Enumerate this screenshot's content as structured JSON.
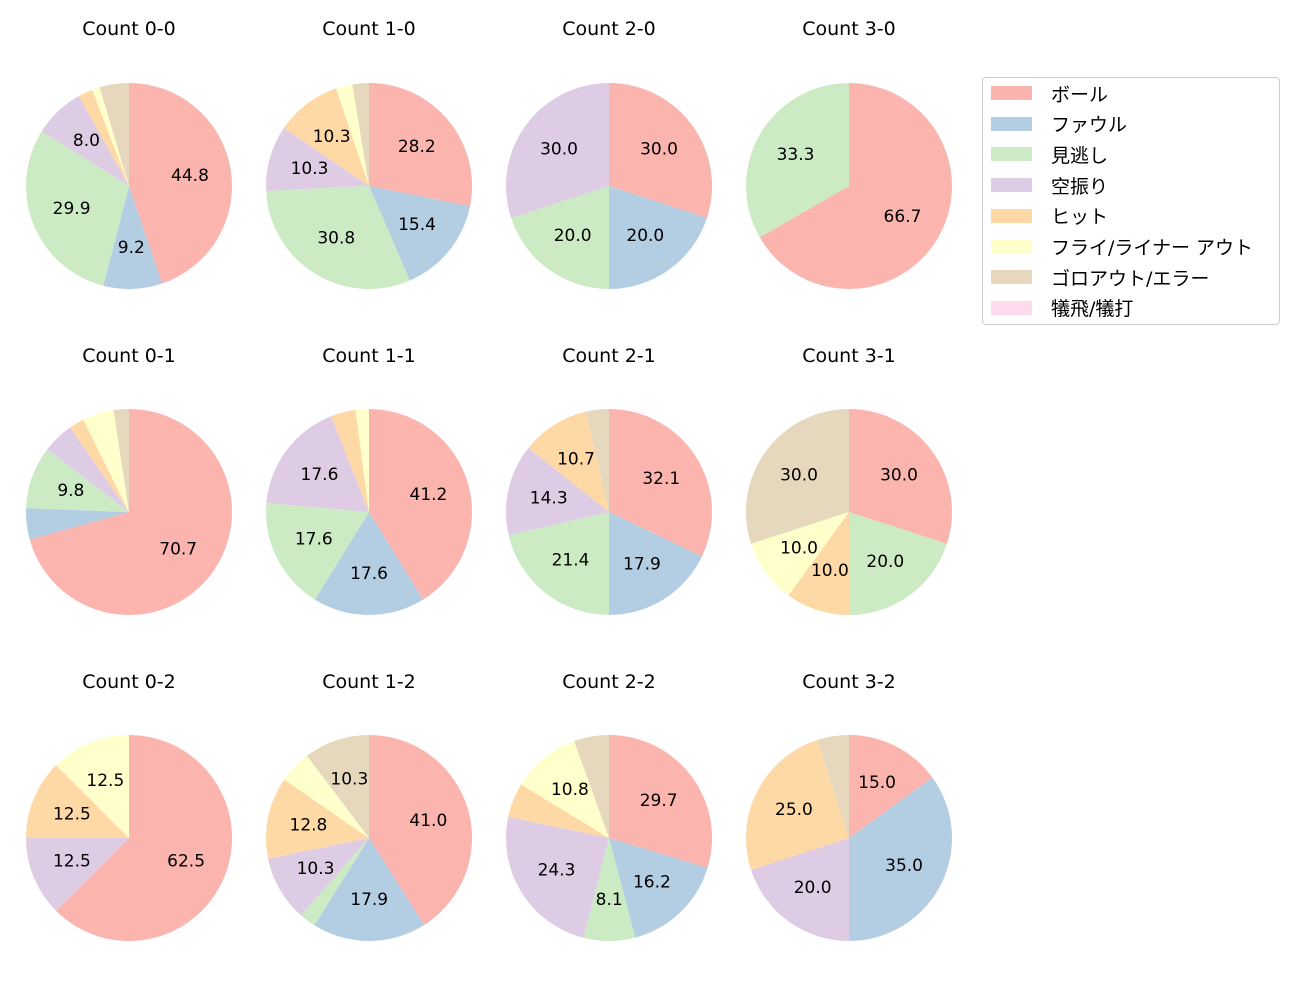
{
  "colors": [
    "#fbb4ae",
    "#b3cde3",
    "#ccebc5",
    "#decbe4",
    "#fed9a6",
    "#ffffcc",
    "#e5d8bd",
    "#fddaec"
  ],
  "legend": {
    "items": [
      "ボール",
      "ファウル",
      "見逃し",
      "空振り",
      "ヒット",
      "フライ/ライナー アウト",
      "ゴロアウト/エラー",
      "犠飛/犠打"
    ]
  },
  "chart_data": [
    {
      "type": "pie",
      "title": "Count 0-0",
      "values": [
        44.8,
        9.2,
        29.9,
        8.0,
        2.3,
        1.2,
        4.6,
        0
      ],
      "labels": [
        "44.8",
        "9.2",
        "29.9",
        "8.0",
        "",
        "",
        "",
        ""
      ]
    },
    {
      "type": "pie",
      "title": "Count 1-0",
      "values": [
        28.2,
        15.4,
        30.8,
        10.3,
        10.3,
        2.6,
        2.6,
        0
      ],
      "labels": [
        "28.2",
        "15.4",
        "30.8",
        "10.3",
        "10.3",
        "",
        "",
        ""
      ]
    },
    {
      "type": "pie",
      "title": "Count 2-0",
      "values": [
        30.0,
        20.0,
        20.0,
        30.0,
        0,
        0,
        0,
        0
      ],
      "labels": [
        "30.0",
        "20.0",
        "20.0",
        "30.0",
        "",
        "",
        "",
        ""
      ]
    },
    {
      "type": "pie",
      "title": "Count 3-0",
      "values": [
        66.7,
        0,
        33.3,
        0,
        0,
        0,
        0,
        0
      ],
      "labels": [
        "66.7",
        "",
        "33.3",
        "",
        "",
        "",
        "",
        ""
      ]
    },
    {
      "type": "pie",
      "title": "Count 0-1",
      "values": [
        70.7,
        4.9,
        9.8,
        4.9,
        2.4,
        4.9,
        2.4,
        0
      ],
      "labels": [
        "70.7",
        "",
        "9.8",
        "",
        "",
        "",
        "",
        ""
      ]
    },
    {
      "type": "pie",
      "title": "Count 1-1",
      "values": [
        41.2,
        17.6,
        17.6,
        17.6,
        3.9,
        2.1,
        0,
        0
      ],
      "labels": [
        "41.2",
        "17.6",
        "17.6",
        "17.6",
        "",
        "",
        "",
        ""
      ]
    },
    {
      "type": "pie",
      "title": "Count 2-1",
      "values": [
        32.1,
        17.9,
        21.4,
        14.3,
        10.7,
        0,
        3.6,
        0
      ],
      "labels": [
        "32.1",
        "17.9",
        "21.4",
        "14.3",
        "10.7",
        "",
        "",
        ""
      ]
    },
    {
      "type": "pie",
      "title": "Count 3-1",
      "values": [
        30.0,
        0,
        20.0,
        0,
        10.0,
        10.0,
        30.0,
        0
      ],
      "labels": [
        "30.0",
        "",
        "20.0",
        "",
        "10.0",
        "10.0",
        "30.0",
        ""
      ]
    },
    {
      "type": "pie",
      "title": "Count 0-2",
      "values": [
        62.5,
        0,
        0,
        12.5,
        12.5,
        12.5,
        0,
        0
      ],
      "labels": [
        "62.5",
        "",
        "",
        "12.5",
        "12.5",
        "12.5",
        "",
        ""
      ]
    },
    {
      "type": "pie",
      "title": "Count 1-2",
      "values": [
        41.0,
        17.9,
        2.6,
        10.3,
        12.8,
        5.1,
        10.3,
        0
      ],
      "labels": [
        "41.0",
        "17.9",
        "",
        "10.3",
        "12.8",
        "",
        "10.3",
        ""
      ]
    },
    {
      "type": "pie",
      "title": "Count 2-2",
      "values": [
        29.7,
        16.2,
        8.1,
        24.3,
        5.4,
        10.8,
        5.5,
        0
      ],
      "labels": [
        "29.7",
        "16.2",
        "8.1",
        "24.3",
        "",
        "10.8",
        "",
        ""
      ]
    },
    {
      "type": "pie",
      "title": "Count 3-2",
      "values": [
        15.0,
        35.0,
        0,
        20.0,
        25.0,
        0,
        5.0,
        0
      ],
      "labels": [
        "15.0",
        "35.0",
        "",
        "20.0",
        "25.0",
        "",
        "",
        ""
      ]
    }
  ]
}
